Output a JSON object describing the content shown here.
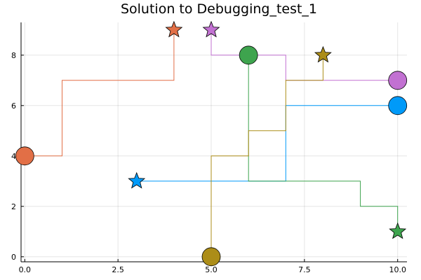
{
  "chart_data": {
    "type": "line",
    "title": "Solution to Debugging_test_1",
    "xlabel": "",
    "ylabel": "",
    "xlim": [
      -0.1,
      10.25
    ],
    "ylim": [
      -0.2,
      9.3
    ],
    "xticks": [
      0,
      2.5,
      5,
      7.5,
      10
    ],
    "xtick_labels": [
      "0.0",
      "2.5",
      "5.0",
      "7.5",
      "10.0"
    ],
    "yticks": [
      0,
      2,
      4,
      6,
      8
    ],
    "ytick_labels": [
      "0",
      "2",
      "4",
      "6",
      "8"
    ],
    "grid": true,
    "legend": "none",
    "series": [
      {
        "color": "#009af9",
        "path": [
          [
            3,
            3
          ],
          [
            7,
            3
          ],
          [
            7,
            6
          ],
          [
            10,
            6
          ]
        ],
        "start": [
          10,
          6
        ],
        "goal": [
          3,
          3
        ]
      },
      {
        "color": "#e26f46",
        "path": [
          [
            0,
            4
          ],
          [
            1,
            4
          ],
          [
            1,
            7
          ],
          [
            4,
            7
          ],
          [
            4,
            9
          ]
        ],
        "start": [
          0,
          4
        ],
        "goal": [
          4,
          9
        ]
      },
      {
        "color": "#3ea44e",
        "path": [
          [
            6,
            8
          ],
          [
            6,
            3
          ],
          [
            9,
            3
          ],
          [
            9,
            2
          ],
          [
            10,
            2
          ],
          [
            10,
            1
          ]
        ],
        "start": [
          6,
          8
        ],
        "goal": [
          10,
          1
        ]
      },
      {
        "color": "#c271d2",
        "path": [
          [
            5,
            9
          ],
          [
            5,
            8
          ],
          [
            7,
            8
          ],
          [
            7,
            7
          ],
          [
            10,
            7
          ]
        ],
        "start": [
          10,
          7
        ],
        "goal": [
          5,
          9
        ]
      },
      {
        "color": "#ac8d18",
        "path": [
          [
            5,
            0
          ],
          [
            5,
            4
          ],
          [
            6,
            4
          ],
          [
            6,
            5
          ],
          [
            7,
            5
          ],
          [
            7,
            7
          ],
          [
            8,
            7
          ],
          [
            8,
            8
          ]
        ],
        "start": [
          5,
          0
        ],
        "goal": [
          8,
          8
        ]
      }
    ]
  }
}
